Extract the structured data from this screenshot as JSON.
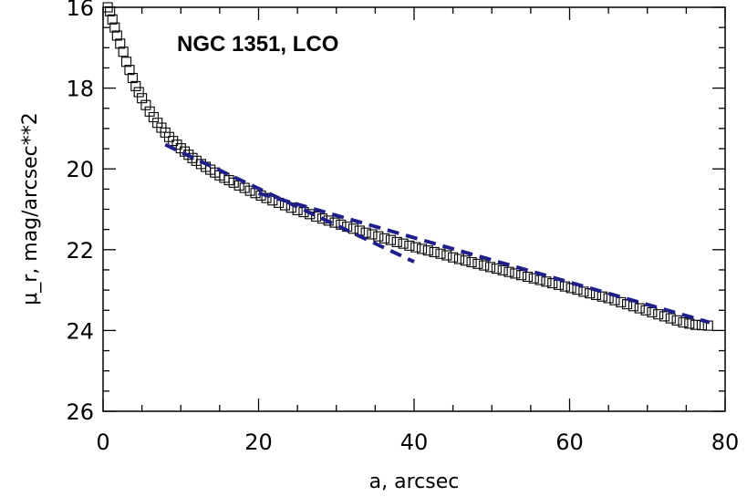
{
  "chart_data": {
    "type": "scatter",
    "title": "",
    "annotation": "NGC 1351, LCO",
    "xlabel": "a, arcsec",
    "ylabel": "μ_r, mag/arcsec**2",
    "xlim": [
      0,
      80
    ],
    "ylim": [
      26,
      16
    ],
    "y_inverted": true,
    "x_ticks": [
      "0",
      "20",
      "40",
      "60",
      "80"
    ],
    "y_ticks": [
      "16",
      "18",
      "20",
      "22",
      "24",
      "26"
    ],
    "grid": false,
    "legend": "none",
    "colors": {
      "points": "#000000",
      "model": "#1f1f8a"
    },
    "series": [
      {
        "marker": "open-square",
        "x": [
          0.6,
          0.9,
          1.2,
          1.5,
          1.8,
          2.2,
          2.6,
          3.0,
          3.4,
          3.8,
          4.2,
          4.6,
          5.0,
          5.5,
          6.0,
          6.5,
          7.0,
          7.5,
          8.0,
          8.5,
          9.0,
          9.5,
          10.0,
          10.5,
          11.0,
          11.5,
          12.0,
          12.6,
          13.2,
          13.8,
          14.4,
          15.0,
          15.6,
          16.2,
          16.8,
          17.5,
          18.2,
          18.9,
          19.6,
          20.3,
          21.0,
          21.8,
          22.6,
          23.4,
          24.2,
          25.0,
          25.8,
          26.6,
          27.4,
          28.2,
          29.0,
          29.8,
          30.6,
          31.4,
          32.2,
          33.0,
          33.8,
          34.6,
          35.4,
          36.2,
          37.0,
          37.8,
          38.6,
          39.4,
          40.2,
          41.0,
          41.8,
          42.6,
          43.4,
          44.2,
          45.0,
          45.8,
          46.6,
          47.4,
          48.2,
          49.0,
          49.8,
          50.6,
          51.4,
          52.2,
          53.0,
          53.8,
          54.6,
          55.4,
          56.2,
          57.0,
          57.8,
          58.6,
          59.4,
          60.2,
          61.0,
          61.8,
          62.6,
          63.4,
          64.2,
          65.0,
          65.8,
          66.6,
          67.4,
          68.2,
          69.0,
          69.8,
          70.6,
          71.4,
          72.2,
          73.0,
          73.8,
          74.6,
          75.4,
          76.2,
          77.0,
          77.8
        ],
        "y": [
          16.0,
          16.1,
          16.3,
          16.5,
          16.7,
          16.9,
          17.1,
          17.35,
          17.55,
          17.75,
          17.95,
          18.1,
          18.25,
          18.42,
          18.58,
          18.72,
          18.86,
          18.98,
          19.1,
          19.21,
          19.31,
          19.4,
          19.49,
          19.57,
          19.65,
          19.73,
          19.8,
          19.88,
          19.95,
          20.02,
          20.09,
          20.16,
          20.22,
          20.28,
          20.34,
          20.41,
          20.47,
          20.54,
          20.6,
          20.66,
          20.72,
          20.78,
          20.84,
          20.9,
          20.96,
          21.02,
          21.07,
          21.12,
          21.18,
          21.23,
          21.28,
          21.33,
          21.38,
          21.43,
          21.48,
          21.53,
          21.58,
          21.62,
          21.67,
          21.72,
          21.76,
          21.81,
          21.85,
          21.9,
          21.94,
          21.98,
          22.02,
          22.06,
          22.1,
          22.14,
          22.19,
          22.23,
          22.27,
          22.31,
          22.35,
          22.39,
          22.43,
          22.47,
          22.51,
          22.55,
          22.59,
          22.63,
          22.67,
          22.71,
          22.75,
          22.79,
          22.83,
          22.87,
          22.91,
          22.95,
          22.99,
          23.04,
          23.08,
          23.12,
          23.16,
          23.2,
          23.25,
          23.3,
          23.35,
          23.4,
          23.45,
          23.5,
          23.55,
          23.6,
          23.65,
          23.7,
          23.75,
          23.8,
          23.83,
          23.86,
          23.87,
          23.88
        ]
      },
      {
        "line": "dashed",
        "x": [
          8,
          40
        ],
        "y": [
          19.4,
          22.3
        ]
      },
      {
        "line": "dashed",
        "x": [
          20,
          78
        ],
        "y": [
          20.6,
          23.8
        ]
      }
    ]
  }
}
